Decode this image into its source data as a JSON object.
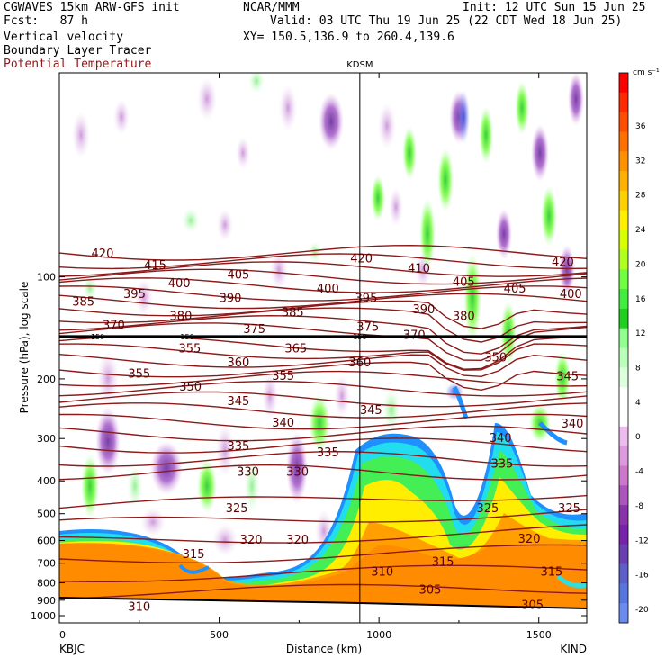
{
  "header": {
    "model": "CGWAVES 15km ARW-GFS init",
    "fcst": "Fcst:   87 h",
    "org": "NCAR/MMM",
    "init": "Init: 12 UTC Sun 15 Jun 25",
    "valid": "Valid: 03 UTC Thu 19 Jun 25 (22 CDT Wed 18 Jun 25)",
    "xy": "XY= 150.5,136.9 to 260.4,139.6",
    "field1": "Vertical velocity",
    "field2": "Boundary Layer Tracer",
    "field3": "Potential Temperature",
    "field3_color": "#8b1a1a"
  },
  "chart_data": {
    "type": "heatmap",
    "xlabel": "Distance (km)",
    "ylabel": "Pressure (hPa), log scale",
    "xlim": [
      0,
      1650
    ],
    "ylim": [
      1050,
      25
    ],
    "y_scale": "log",
    "x_ticks": [
      0,
      500,
      1000,
      1500
    ],
    "y_ticks": [
      100,
      200,
      300,
      400,
      500,
      600,
      700,
      800,
      900,
      1000
    ],
    "left_endpoint": "KBJC",
    "right_endpoint": "KIND",
    "station_marker": {
      "label": "KDSM",
      "x": 940
    },
    "reference_line": {
      "label": "150",
      "pressure": 150
    },
    "colorbar": {
      "units": "cm s⁻¹",
      "tick_labels": [
        36,
        32,
        28,
        24,
        20,
        16,
        12,
        8,
        4,
        0,
        -4,
        -8,
        -12,
        -16,
        -20
      ],
      "colors": [
        "#ff0000",
        "#ff2a00",
        "#ff4d00",
        "#ff7000",
        "#ff9000",
        "#ffb000",
        "#ffd000",
        "#ffee00",
        "#d8ff00",
        "#b0ff20",
        "#70ff40",
        "#40ee40",
        "#20d020",
        "#90ff90",
        "#b8ffb8",
        "#dcffdc",
        "#ffffff",
        "#ffffff",
        "#eebbee",
        "#dd99dd",
        "#cc77cc",
        "#aa55bb",
        "#8833aa",
        "#7722aa",
        "#6a3fb0",
        "#5d5fc8",
        "#5577dd",
        "#6a8cf0"
      ]
    },
    "theta_contours": {
      "color": "#8b1a1a",
      "labels": [
        {
          "v": 420,
          "x": 135,
          "p": 85
        },
        {
          "v": 415,
          "x": 300,
          "p": 92
        },
        {
          "v": 405,
          "x": 560,
          "p": 98
        },
        {
          "v": 420,
          "x": 945,
          "p": 88
        },
        {
          "v": 410,
          "x": 1125,
          "p": 94
        },
        {
          "v": 405,
          "x": 1265,
          "p": 103
        },
        {
          "v": 420,
          "x": 1575,
          "p": 90
        },
        {
          "v": 400,
          "x": 375,
          "p": 104
        },
        {
          "v": 400,
          "x": 840,
          "p": 108
        },
        {
          "v": 405,
          "x": 1425,
          "p": 108
        },
        {
          "v": 400,
          "x": 1600,
          "p": 112
        },
        {
          "v": 385,
          "x": 75,
          "p": 118
        },
        {
          "v": 395,
          "x": 235,
          "p": 112
        },
        {
          "v": 390,
          "x": 535,
          "p": 115
        },
        {
          "v": 395,
          "x": 960,
          "p": 115
        },
        {
          "v": 390,
          "x": 1140,
          "p": 124
        },
        {
          "v": 385,
          "x": 730,
          "p": 127
        },
        {
          "v": 380,
          "x": 1265,
          "p": 130
        },
        {
          "v": 370,
          "x": 170,
          "p": 138
        },
        {
          "v": 380,
          "x": 380,
          "p": 130
        },
        {
          "v": 375,
          "x": 610,
          "p": 142
        },
        {
          "v": 375,
          "x": 965,
          "p": 140
        },
        {
          "v": 370,
          "x": 1110,
          "p": 148
        },
        {
          "v": 355,
          "x": 408,
          "p": 162
        },
        {
          "v": 365,
          "x": 740,
          "p": 162
        },
        {
          "v": 355,
          "x": 250,
          "p": 192
        },
        {
          "v": 360,
          "x": 560,
          "p": 178
        },
        {
          "v": 355,
          "x": 700,
          "p": 195
        },
        {
          "v": 360,
          "x": 940,
          "p": 178
        },
        {
          "v": 350,
          "x": 1365,
          "p": 172
        },
        {
          "v": 345,
          "x": 1590,
          "p": 196
        },
        {
          "v": 350,
          "x": 410,
          "p": 210
        },
        {
          "v": 345,
          "x": 560,
          "p": 232
        },
        {
          "v": 345,
          "x": 975,
          "p": 246
        },
        {
          "v": 340,
          "x": 700,
          "p": 268
        },
        {
          "v": 340,
          "x": 1380,
          "p": 298
        },
        {
          "v": 340,
          "x": 1605,
          "p": 270
        },
        {
          "v": 335,
          "x": 560,
          "p": 315
        },
        {
          "v": 335,
          "x": 840,
          "p": 328
        },
        {
          "v": 335,
          "x": 1385,
          "p": 355
        },
        {
          "v": 330,
          "x": 590,
          "p": 375
        },
        {
          "v": 330,
          "x": 745,
          "p": 375
        },
        {
          "v": 325,
          "x": 555,
          "p": 480
        },
        {
          "v": 325,
          "x": 1340,
          "p": 480
        },
        {
          "v": 325,
          "x": 1595,
          "p": 480
        },
        {
          "v": 320,
          "x": 600,
          "p": 595
        },
        {
          "v": 320,
          "x": 745,
          "p": 595
        },
        {
          "v": 320,
          "x": 1470,
          "p": 590
        },
        {
          "v": 315,
          "x": 420,
          "p": 655
        },
        {
          "v": 315,
          "x": 1200,
          "p": 690
        },
        {
          "v": 315,
          "x": 1540,
          "p": 738
        },
        {
          "v": 310,
          "x": 1010,
          "p": 738
        },
        {
          "v": 305,
          "x": 1160,
          "p": 835
        },
        {
          "v": 305,
          "x": 1480,
          "p": 925
        },
        {
          "v": 310,
          "x": 250,
          "p": 938
        }
      ]
    }
  }
}
